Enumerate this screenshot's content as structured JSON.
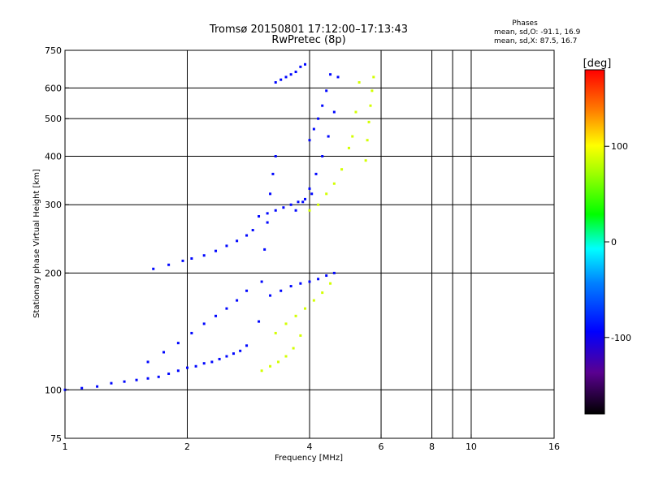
{
  "chart_data": {
    "type": "scatter",
    "title": "Tromsø 20150801 17:12:00–17:13:43",
    "subtitle": "RwPretec (8p)",
    "xlabel": "Frequency [MHz]",
    "ylabel": "Stationary phase Virtual Height [km]",
    "x_scale": "log",
    "y_scale": "log",
    "xlim": [
      1,
      16
    ],
    "ylim": [
      75,
      750
    ],
    "x_ticks": [
      1,
      2,
      4,
      6,
      8,
      10,
      16
    ],
    "x_tick_labels": [
      "1",
      "2",
      "4",
      "6",
      "8",
      "10",
      "16"
    ],
    "x_grid_lines": [
      2,
      4,
      6,
      8,
      9,
      10
    ],
    "y_ticks": [
      75,
      100,
      200,
      300,
      400,
      500,
      600,
      750
    ],
    "y_tick_labels": [
      "75",
      "100",
      "200",
      "300",
      "400",
      "500",
      "600",
      "750"
    ],
    "y_grid_lines": [
      100,
      200,
      300,
      400,
      500,
      600
    ],
    "grid": true,
    "phases": {
      "heading": "Phases",
      "line_o": "mean, sd,O: -91.1, 16.9",
      "line_x": "mean, sd,X:  87.5, 16.7"
    },
    "colorbar": {
      "label": "[deg]",
      "range": [
        -180,
        180
      ],
      "ticks": [
        100,
        0,
        -100
      ],
      "tick_labels": [
        "100",
        "0",
        "-100"
      ]
    },
    "series": [
      {
        "mode": "O",
        "phase_mean": -91.1,
        "traces": [
          {
            "x": [
              1.0,
              1.1,
              1.2,
              1.3,
              1.4,
              1.5,
              1.6,
              1.7,
              1.8,
              1.9,
              2.0,
              2.1,
              2.2,
              2.3,
              2.4,
              2.5,
              2.6,
              2.7,
              2.8
            ],
            "y": [
              100,
              101,
              102,
              104,
              105,
              106,
              107,
              108,
              110,
              112,
              114,
              115,
              117,
              118,
              120,
              122,
              124,
              126,
              130
            ]
          },
          {
            "x": [
              1.65,
              1.8,
              1.95,
              2.05,
              2.2,
              2.35,
              2.5,
              2.65,
              2.8,
              2.9
            ],
            "y": [
              205,
              210,
              215,
              218,
              222,
              228,
              235,
              242,
              250,
              258
            ]
          },
          {
            "x": [
              1.6,
              1.75,
              1.9,
              2.05,
              2.2,
              2.35,
              2.5,
              2.65,
              2.8
            ],
            "y": [
              118,
              125,
              132,
              140,
              148,
              155,
              162,
              170,
              180
            ]
          },
          {
            "x": [
              3.0,
              3.05,
              3.1,
              3.15,
              3.2,
              3.25,
              3.3
            ],
            "y": [
              150,
              190,
              230,
              270,
              320,
              360,
              400
            ]
          },
          {
            "x": [
              3.0,
              3.15,
              3.3,
              3.45,
              3.6,
              3.75,
              3.9,
              4.05
            ],
            "y": [
              280,
              285,
              290,
              295,
              300,
              305,
              310,
              320
            ]
          },
          {
            "x": [
              3.3,
              3.4,
              3.5,
              3.6,
              3.7,
              3.8,
              3.9,
              4.0,
              4.1,
              4.2,
              4.3,
              4.4,
              4.5
            ],
            "y": [
              620,
              630,
              640,
              650,
              660,
              680,
              690,
              440,
              470,
              500,
              540,
              590,
              650
            ]
          },
          {
            "x": [
              3.7,
              3.85,
              4.0,
              4.15,
              4.3,
              4.45,
              4.6,
              4.7
            ],
            "y": [
              290,
              305,
              330,
              360,
              400,
              450,
              520,
              640
            ]
          },
          {
            "x": [
              3.2,
              3.4,
              3.6,
              3.8,
              4.0,
              4.2,
              4.4,
              4.6
            ],
            "y": [
              175,
              180,
              185,
              188,
              190,
              193,
              197,
              200
            ]
          }
        ]
      },
      {
        "mode": "X",
        "phase_mean": 87.5,
        "traces": [
          {
            "x": [
              3.05,
              3.2,
              3.35,
              3.5,
              3.65,
              3.8
            ],
            "y": [
              112,
              115,
              118,
              122,
              128,
              138
            ]
          },
          {
            "x": [
              3.3,
              3.5,
              3.7,
              3.9,
              4.1,
              4.3,
              4.5
            ],
            "y": [
              140,
              148,
              155,
              162,
              170,
              178,
              188
            ]
          },
          {
            "x": [
              4.0,
              4.2,
              4.4,
              4.6,
              4.8,
              5.0
            ],
            "y": [
              290,
              300,
              320,
              340,
              370,
              420
            ]
          },
          {
            "x": [
              5.1,
              5.2,
              5.3
            ],
            "y": [
              450,
              520,
              620
            ]
          },
          {
            "x": [
              5.5,
              5.55,
              5.6,
              5.65,
              5.7,
              5.75
            ],
            "y": [
              390,
              440,
              490,
              540,
              590,
              640
            ]
          }
        ]
      }
    ]
  }
}
